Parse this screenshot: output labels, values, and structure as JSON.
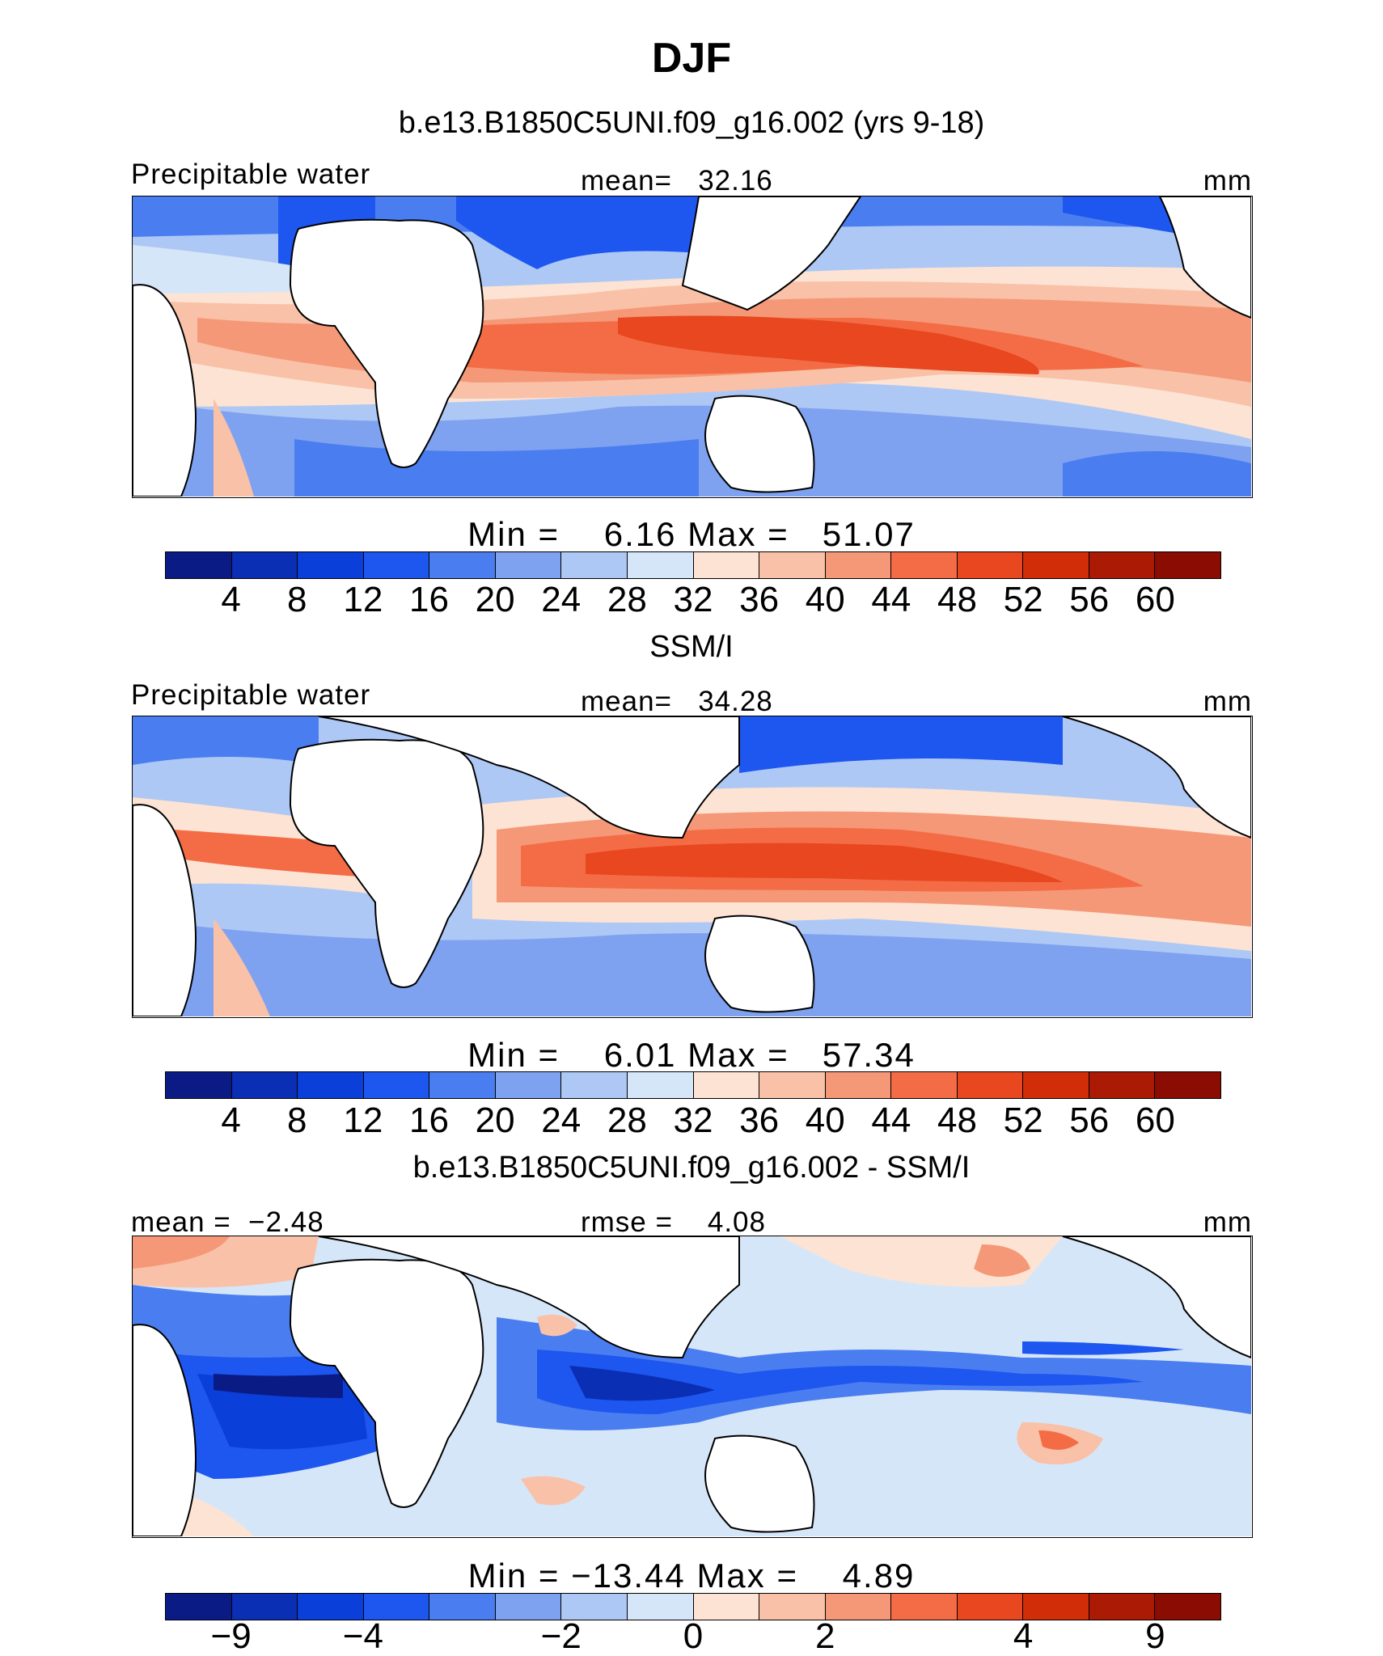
{
  "title": "DJF",
  "colors": {
    "scale": [
      "#0b1b86",
      "#0a2fb5",
      "#0a3fd9",
      "#1e56f0",
      "#4a7ef0",
      "#7ea2f0",
      "#aec8f5",
      "#d6e6f9",
      "#fde3d3",
      "#f9c1a7",
      "#f59877",
      "#f46c45",
      "#e8471f",
      "#d12d08",
      "#ab1a05",
      "#8a0c02"
    ],
    "land": "#ffffff",
    "coast": "#000000"
  },
  "chart_data": [
    {
      "type": "heatmap",
      "title": "b.e13.B1850C5UNI.f09_g16.002 (yrs 9-18)",
      "variable": "Precipitable water",
      "stat_label": "mean=",
      "stat_value": "32.16",
      "units": "mm",
      "min_label": "Min =",
      "min_value": "6.16",
      "max_label": "Max =",
      "max_value": "51.07",
      "levels": [
        "4",
        "8",
        "12",
        "16",
        "20",
        "24",
        "28",
        "32",
        "36",
        "40",
        "44",
        "48",
        "52",
        "56",
        "60"
      ]
    },
    {
      "type": "heatmap",
      "title": "SSM/I",
      "variable": "Precipitable water",
      "stat_label": "mean=",
      "stat_value": "34.28",
      "units": "mm",
      "min_label": "Min =",
      "min_value": "6.01",
      "max_label": "Max =",
      "max_value": "57.34",
      "levels": [
        "4",
        "8",
        "12",
        "16",
        "20",
        "24",
        "28",
        "32",
        "36",
        "40",
        "44",
        "48",
        "52",
        "56",
        "60"
      ]
    },
    {
      "type": "heatmap",
      "title": "b.e13.B1850C5UNI.f09_g16.002 - SSM/I",
      "mean_label": "mean =",
      "mean_value": "−2.48",
      "stat_label": "rmse =",
      "stat_value": "4.08",
      "units": "mm",
      "min_label": "Min =",
      "min_value": "−13.44",
      "max_label": "Max =",
      "max_value": "4.89",
      "levels": [
        "−9",
        "",
        "−4",
        "",
        "−2",
        "",
        "0",
        "",
        "2",
        "",
        "4",
        "",
        "9"
      ]
    }
  ]
}
